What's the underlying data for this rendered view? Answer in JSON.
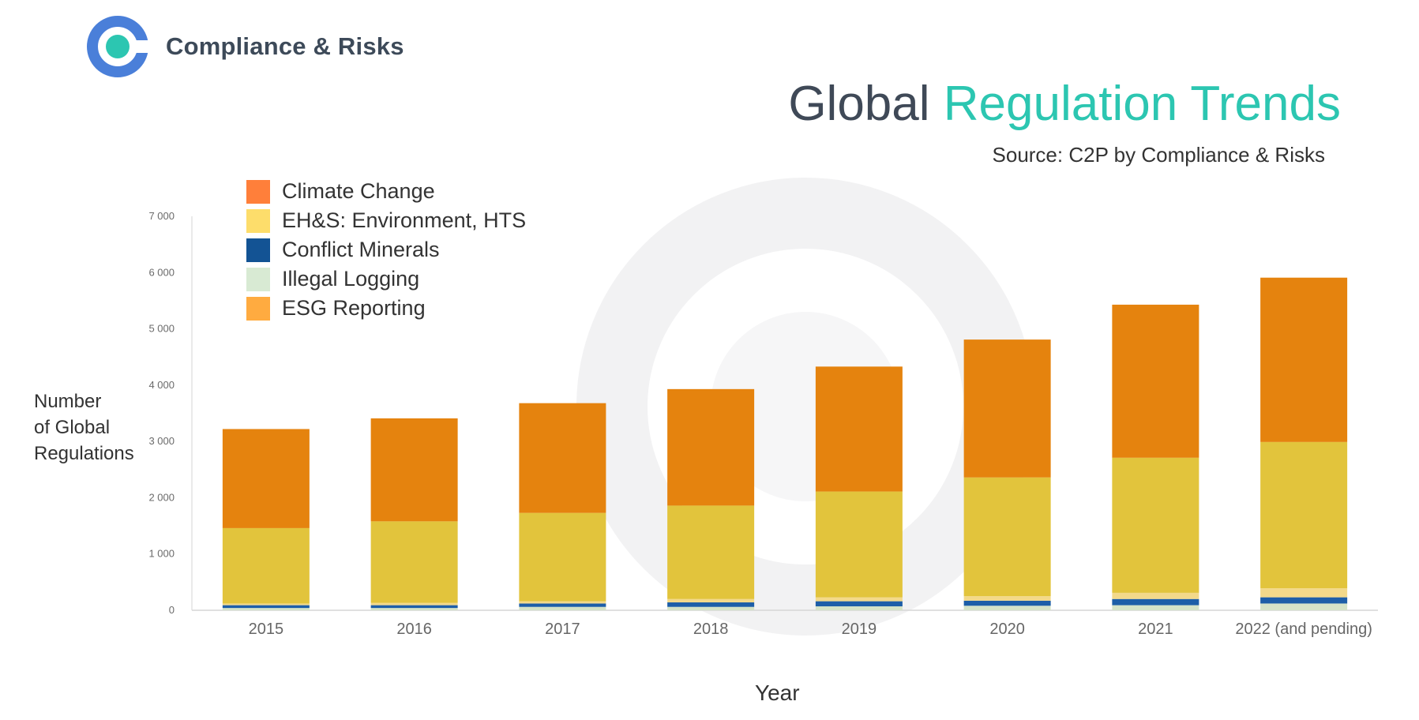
{
  "brand": {
    "name": "Compliance & Risks"
  },
  "header": {
    "title_part1": "Global ",
    "title_part2": "Regulation Trends",
    "source": "Source: C2P by Compliance & Risks"
  },
  "colors": {
    "accent_teal": "#2cc6b1",
    "logo_blue": "#4a7fd9",
    "title_dark": "#3f4957"
  },
  "chart_data": {
    "type": "bar",
    "stacked": true,
    "categories": [
      "2015",
      "2016",
      "2017",
      "2018",
      "2019",
      "2020",
      "2021",
      "2022 (and pending)"
    ],
    "series": [
      {
        "name": "Climate Change",
        "legend_color": "#ff7f3a",
        "color": "#e5830e",
        "values": [
          1760,
          1830,
          1950,
          2070,
          2220,
          2450,
          2720,
          2920
        ]
      },
      {
        "name": "EH&S: Environment, HTS",
        "legend_color": "#fddd6b",
        "color": "#e2c43c",
        "values": [
          1340,
          1450,
          1570,
          1660,
          1880,
          2110,
          2400,
          2600
        ]
      },
      {
        "name": "Conflict Minerals",
        "legend_color": "#135394",
        "color": "#1d5ea8",
        "values": [
          50,
          50,
          60,
          80,
          90,
          90,
          110,
          110
        ]
      },
      {
        "name": "Illegal Logging",
        "legend_color": "#d8ead3",
        "color": "#d5e3c8",
        "values": [
          40,
          40,
          60,
          60,
          70,
          80,
          90,
          120
        ]
      },
      {
        "name": "ESG Reporting",
        "legend_color": "#ffab40",
        "color": "#f3d98a",
        "values": [
          30,
          40,
          40,
          60,
          70,
          80,
          110,
          160
        ]
      }
    ],
    "stack_order_bottom_to_top": [
      "Illegal Logging",
      "Conflict Minerals",
      "ESG Reporting",
      "EH&S: Environment, HTS",
      "Climate Change"
    ],
    "ylim": [
      0,
      7000
    ],
    "yticks": [
      "0",
      "1 000",
      "2 000",
      "3 000",
      "4 000",
      "5 000",
      "6 000",
      "7 000"
    ],
    "ylabel_lines": [
      "Number",
      "of Global",
      "Regulations"
    ],
    "xlabel": "Year",
    "grid": false,
    "legend_position": "top-left"
  }
}
